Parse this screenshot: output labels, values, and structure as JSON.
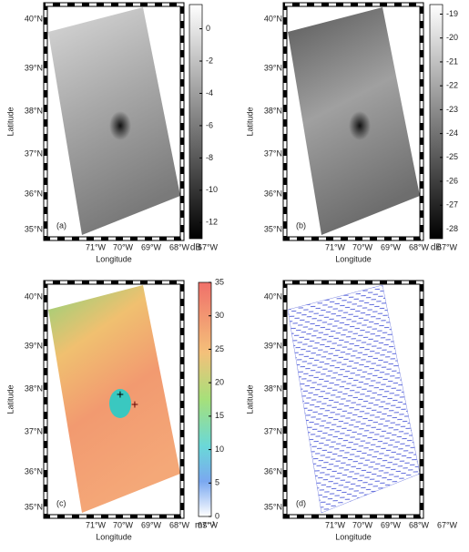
{
  "panels": [
    {
      "label": "(a)",
      "x_axis_label": "Longitude",
      "y_axis_label": "Latitude",
      "lat_ticks": [
        "40°N",
        "39°N",
        "38°N",
        "37°N",
        "36°N",
        "35°N"
      ],
      "lon_ticks": [
        "71°W",
        "70°W",
        "69°W",
        "68°W",
        "67°W"
      ],
      "colorbar": {
        "unit": "dB",
        "lim": [
          -13,
          1.5
        ],
        "ticks": [
          0,
          -2,
          -4,
          -6,
          -8,
          -10,
          -12
        ]
      }
    },
    {
      "label": "(b)",
      "x_axis_label": "Longitude",
      "y_axis_label": "Latitude",
      "lat_ticks": [
        "40°N",
        "39°N",
        "38°N",
        "37°N",
        "36°N",
        "35°N"
      ],
      "lon_ticks": [
        "71°W",
        "70°W",
        "69°W",
        "68°W",
        "67°W"
      ],
      "colorbar": {
        "unit": "dB",
        "lim": [
          -28.4,
          -18.6
        ],
        "ticks": [
          -19,
          -20,
          -21,
          -22,
          -23,
          -24,
          -25,
          -26,
          -27,
          -28
        ]
      }
    },
    {
      "label": "(c)",
      "x_axis_label": "Longitude",
      "y_axis_label": "Latitude",
      "lat_ticks": [
        "40°N",
        "39°N",
        "38°N",
        "37°N",
        "36°N",
        "35°N"
      ],
      "lon_ticks": [
        "71°W",
        "70°W",
        "69°W",
        "68°W",
        "67°W"
      ],
      "colorbar": {
        "unit": "ms⁻¹",
        "lim": [
          0,
          35
        ],
        "ticks": [
          35,
          30,
          25,
          20,
          15,
          10,
          5,
          0
        ]
      }
    },
    {
      "label": "(d)",
      "x_axis_label": "Longitude",
      "y_axis_label": "Latitude",
      "lat_ticks": [
        "40°N",
        "39°N",
        "38°N",
        "37°N",
        "36°N",
        "35°N"
      ],
      "lon_ticks": [
        "71°W",
        "70°W",
        "69°W",
        "68°W",
        "67°W"
      ]
    }
  ]
}
